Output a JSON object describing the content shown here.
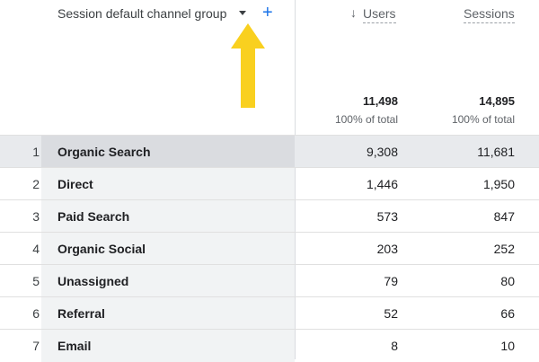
{
  "header": {
    "dimension_label": "Session default channel group",
    "add_symbol": "+",
    "sort_arrow": "↓",
    "metrics": [
      "Users",
      "Sessions"
    ],
    "totals": [
      "11,498",
      "14,895"
    ],
    "totals_pct": [
      "100% of total",
      "100% of total"
    ]
  },
  "colors": {
    "annotation_arrow": "#f9d01f",
    "accent": "#1a73e8",
    "highlight_row": "#e8eaed"
  },
  "rows": [
    {
      "rank": "1",
      "channel": "Organic Search",
      "users": "9,308",
      "sessions": "11,681"
    },
    {
      "rank": "2",
      "channel": "Direct",
      "users": "1,446",
      "sessions": "1,950"
    },
    {
      "rank": "3",
      "channel": "Paid Search",
      "users": "573",
      "sessions": "847"
    },
    {
      "rank": "4",
      "channel": "Organic Social",
      "users": "203",
      "sessions": "252"
    },
    {
      "rank": "5",
      "channel": "Unassigned",
      "users": "79",
      "sessions": "80"
    },
    {
      "rank": "6",
      "channel": "Referral",
      "users": "52",
      "sessions": "66"
    },
    {
      "rank": "7",
      "channel": "Email",
      "users": "8",
      "sessions": "10"
    }
  ]
}
